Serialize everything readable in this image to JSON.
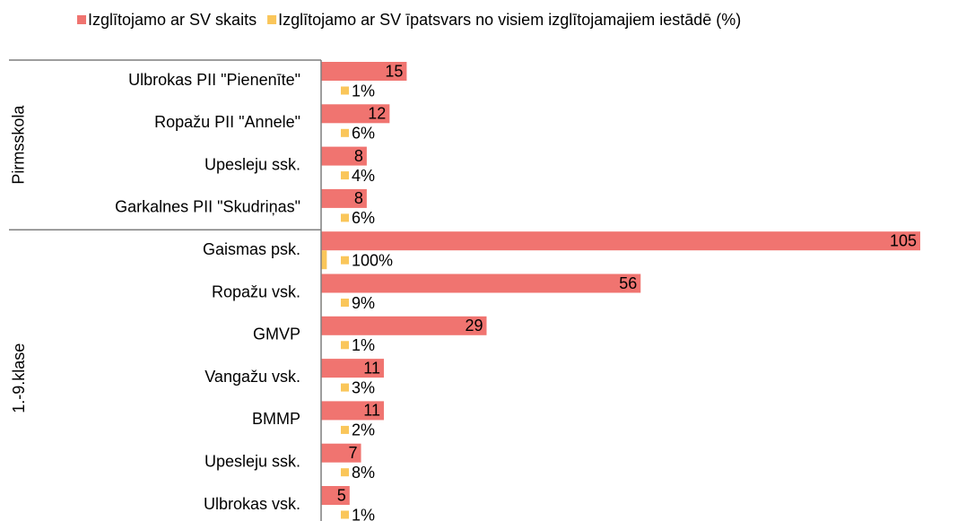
{
  "chart_data": {
    "type": "bar",
    "orientation": "horizontal",
    "category_groups": [
      {
        "name": "Pirmsskola",
        "categories": [
          "Ulbrokas PII \"Pienenīte\"",
          "Ropažu PII \"Annele\"",
          "Upesleju ssk.",
          "Garkalnes PII \"Skudriņas\""
        ]
      },
      {
        "name": "1.-9.klase",
        "categories": [
          "Gaismas psk.",
          "Ropažu vsk.",
          "GMVP",
          "Vangažu vsk.",
          "BMMP",
          "Upesleju ssk.",
          "Ulbrokas vsk."
        ]
      }
    ],
    "series": [
      {
        "name": "Izglītojamo ar SV skaits",
        "color": "#f07470",
        "values": [
          15,
          12,
          8,
          8,
          105,
          56,
          29,
          11,
          11,
          7,
          5
        ]
      },
      {
        "name": "Izglītojamo ar SV īpatsvars no visiem izglītojamajiem iestādē (%)",
        "color": "#fac65a",
        "axis": "x2",
        "values": [
          1,
          6,
          4,
          6,
          100,
          9,
          1,
          3,
          2,
          8,
          1
        ],
        "value_labels": [
          "1%",
          "6%",
          "4%",
          "6%",
          "100%",
          "9%",
          "1%",
          "3%",
          "2%",
          "8%",
          "1%"
        ]
      }
    ],
    "xlim": [
      0,
      105
    ],
    "x2lim": [
      0,
      10500
    ],
    "legend": "top"
  }
}
